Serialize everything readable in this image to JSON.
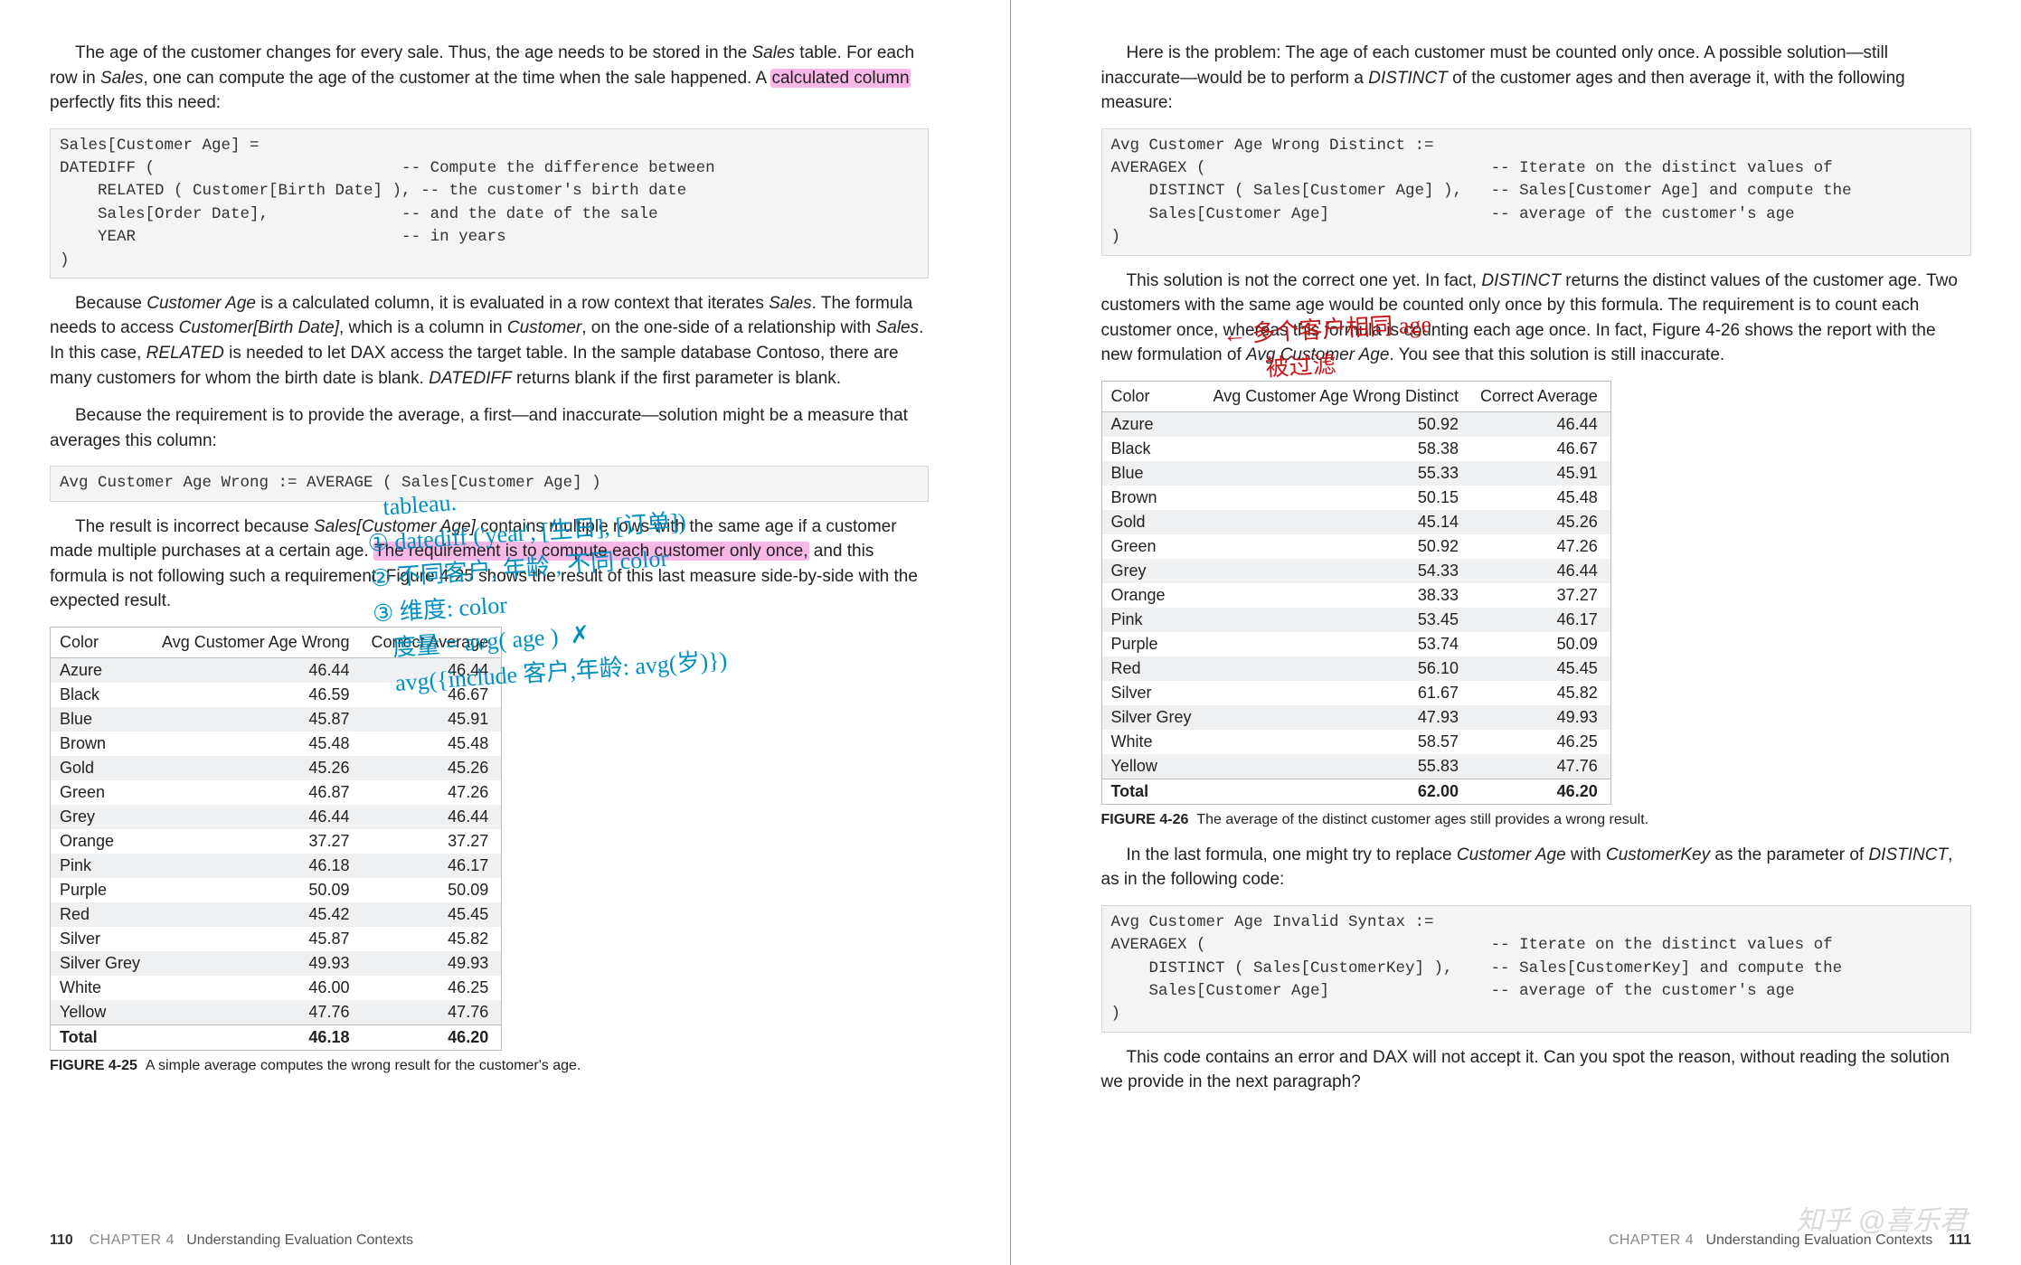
{
  "left": {
    "p1_a": "The age of the customer changes for every sale. Thus, the age needs to be stored in the ",
    "p1_b": " table. For each row in ",
    "p1_c": ", one can compute the age of the customer at the time when the sale happened. A ",
    "p1_hl1": "calculated column ",
    "p1_d": "perfectly fits this need:",
    "code1": "Sales[Customer Age] =\nDATEDIFF (                          -- Compute the difference between\n    RELATED ( Customer[Birth Date] ), -- the customer's birth date\n    Sales[Order Date],              -- and the date of the sale\n    YEAR                            -- in years\n)",
    "p2_a": "Because ",
    "p2_b": " is a calculated column, it is evaluated in a row context that iterates ",
    "p2_c": ". The formula needs to access ",
    "p2_d": ", which is a column in ",
    "p2_e": ", on the one-side of a relationship with ",
    "p2_f": ". In this case, ",
    "p2_g": " is needed to let DAX access the target table. In the sample database Contoso, there are many customers for whom the birth date is blank. ",
    "p2_h": " returns blank if the first parameter is blank.",
    "p3": "Because the requirement is to provide the average, a first—and inaccurate—solution might be a measure that averages this column:",
    "code2": "Avg Customer Age Wrong := AVERAGE ( Sales[Customer Age] )",
    "p4_a": "The result is incorrect because ",
    "p4_b": " contains multiple rows with the same age if a customer made multiple purchases at a certain age. ",
    "p4_hl2": "The requirement is to compute each customer only once,",
    "p4_c": " and this formula is not following such a requirement. Figure 4-25 shows the result of this last measure side-by-side with the expected result.",
    "table1": {
      "columns": [
        "Color",
        "Avg Customer Age Wrong",
        "Correct Average"
      ],
      "rows": [
        [
          "Azure",
          "46.44",
          "46.44"
        ],
        [
          "Black",
          "46.59",
          "46.67"
        ],
        [
          "Blue",
          "45.87",
          "45.91"
        ],
        [
          "Brown",
          "45.48",
          "45.48"
        ],
        [
          "Gold",
          "45.26",
          "45.26"
        ],
        [
          "Green",
          "46.87",
          "47.26"
        ],
        [
          "Grey",
          "46.44",
          "46.44"
        ],
        [
          "Orange",
          "37.27",
          "37.27"
        ],
        [
          "Pink",
          "46.18",
          "46.17"
        ],
        [
          "Purple",
          "50.09",
          "50.09"
        ],
        [
          "Red",
          "45.42",
          "45.45"
        ],
        [
          "Silver",
          "45.87",
          "45.82"
        ],
        [
          "Silver Grey",
          "49.93",
          "49.93"
        ],
        [
          "White",
          "46.00",
          "46.25"
        ],
        [
          "Yellow",
          "47.76",
          "47.76"
        ]
      ],
      "total": [
        "Total",
        "46.18",
        "46.20"
      ]
    },
    "fig1_no": "FIGURE 4-25",
    "fig1_txt": "A simple average computes the wrong result for the customer's age.",
    "footer_pno": "110",
    "footer_chap": "CHAPTER 4",
    "footer_title": "Understanding Evaluation Contexts",
    "annotation_blue": "   tableau.\n① datediff ('year', [生日], [订单])\n② 不同客户, 年龄 , 不同 color\n③ 维度: color\n   度量 = avg( age )  ✗\n   avg({include 客户,年龄: avg(岁)})"
  },
  "right": {
    "p1_a": "Here is the problem: The age of each customer must be counted only once. A possible solution—still inaccurate—would be to perform a ",
    "p1_b": " of the customer ages and then average it, with the following measure:",
    "code1": "Avg Customer Age Wrong Distinct :=\nAVERAGEX (                              -- Iterate on the distinct values of\n    DISTINCT ( Sales[Customer Age] ),   -- Sales[Customer Age] and compute the\n    Sales[Customer Age]                 -- average of the customer's age\n)",
    "p2_a": "This solution is not the correct one yet. In fact, ",
    "p2_b": " returns the distinct values of the customer age. Two customers with the same age would be counted only once by this formula. The requirement is to count each customer once, whereas this formula is counting each age once. In fact, Figure 4-26 shows the report with the new formulation of ",
    "p2_c": ". You see that this solution is still inaccurate.",
    "table2": {
      "columns": [
        "Color",
        "Avg Customer Age Wrong Distinct",
        "Correct Average"
      ],
      "rows": [
        [
          "Azure",
          "50.92",
          "46.44"
        ],
        [
          "Black",
          "58.38",
          "46.67"
        ],
        [
          "Blue",
          "55.33",
          "45.91"
        ],
        [
          "Brown",
          "50.15",
          "45.48"
        ],
        [
          "Gold",
          "45.14",
          "45.26"
        ],
        [
          "Green",
          "50.92",
          "47.26"
        ],
        [
          "Grey",
          "54.33",
          "46.44"
        ],
        [
          "Orange",
          "38.33",
          "37.27"
        ],
        [
          "Pink",
          "53.45",
          "46.17"
        ],
        [
          "Purple",
          "53.74",
          "50.09"
        ],
        [
          "Red",
          "56.10",
          "45.45"
        ],
        [
          "Silver",
          "61.67",
          "45.82"
        ],
        [
          "Silver Grey",
          "47.93",
          "49.93"
        ],
        [
          "White",
          "58.57",
          "46.25"
        ],
        [
          "Yellow",
          "55.83",
          "47.76"
        ]
      ],
      "total": [
        "Total",
        "62.00",
        "46.20"
      ]
    },
    "fig2_no": "FIGURE 4-26",
    "fig2_txt": "The average of the distinct customer ages still provides a wrong result.",
    "p3_a": "In the last formula, one might try to replace ",
    "p3_b": " with ",
    "p3_c": " as the parameter of ",
    "p3_d": ", as in the following code:",
    "code2": "Avg Customer Age Invalid Syntax :=\nAVERAGEX (                              -- Iterate on the distinct values of\n    DISTINCT ( Sales[CustomerKey] ),    -- Sales[CustomerKey] and compute the\n    Sales[Customer Age]                 -- average of the customer's age\n)",
    "p4": "This code contains an error and DAX will not accept it. Can you spot the reason, without reading the solution we provide in the next paragraph?",
    "footer_pno": "111",
    "footer_chap": "CHAPTER 4",
    "footer_title": "Understanding Evaluation Contexts",
    "annotation_red": "← 多个客户相同 age\n       被过滤",
    "watermark": "知乎  @喜乐君"
  },
  "italics": {
    "sales": "Sales",
    "customerAge": "Customer Age",
    "customerBirth": "Customer[Birth Date]",
    "customer": "Customer",
    "related": "RELATED",
    "datediff": "DATEDIFF",
    "salesCustAge": "Sales[Customer Age]",
    "distinct": "DISTINCT",
    "avgCustAge": "Avg Customer Age",
    "customerKey": "CustomerKey"
  }
}
